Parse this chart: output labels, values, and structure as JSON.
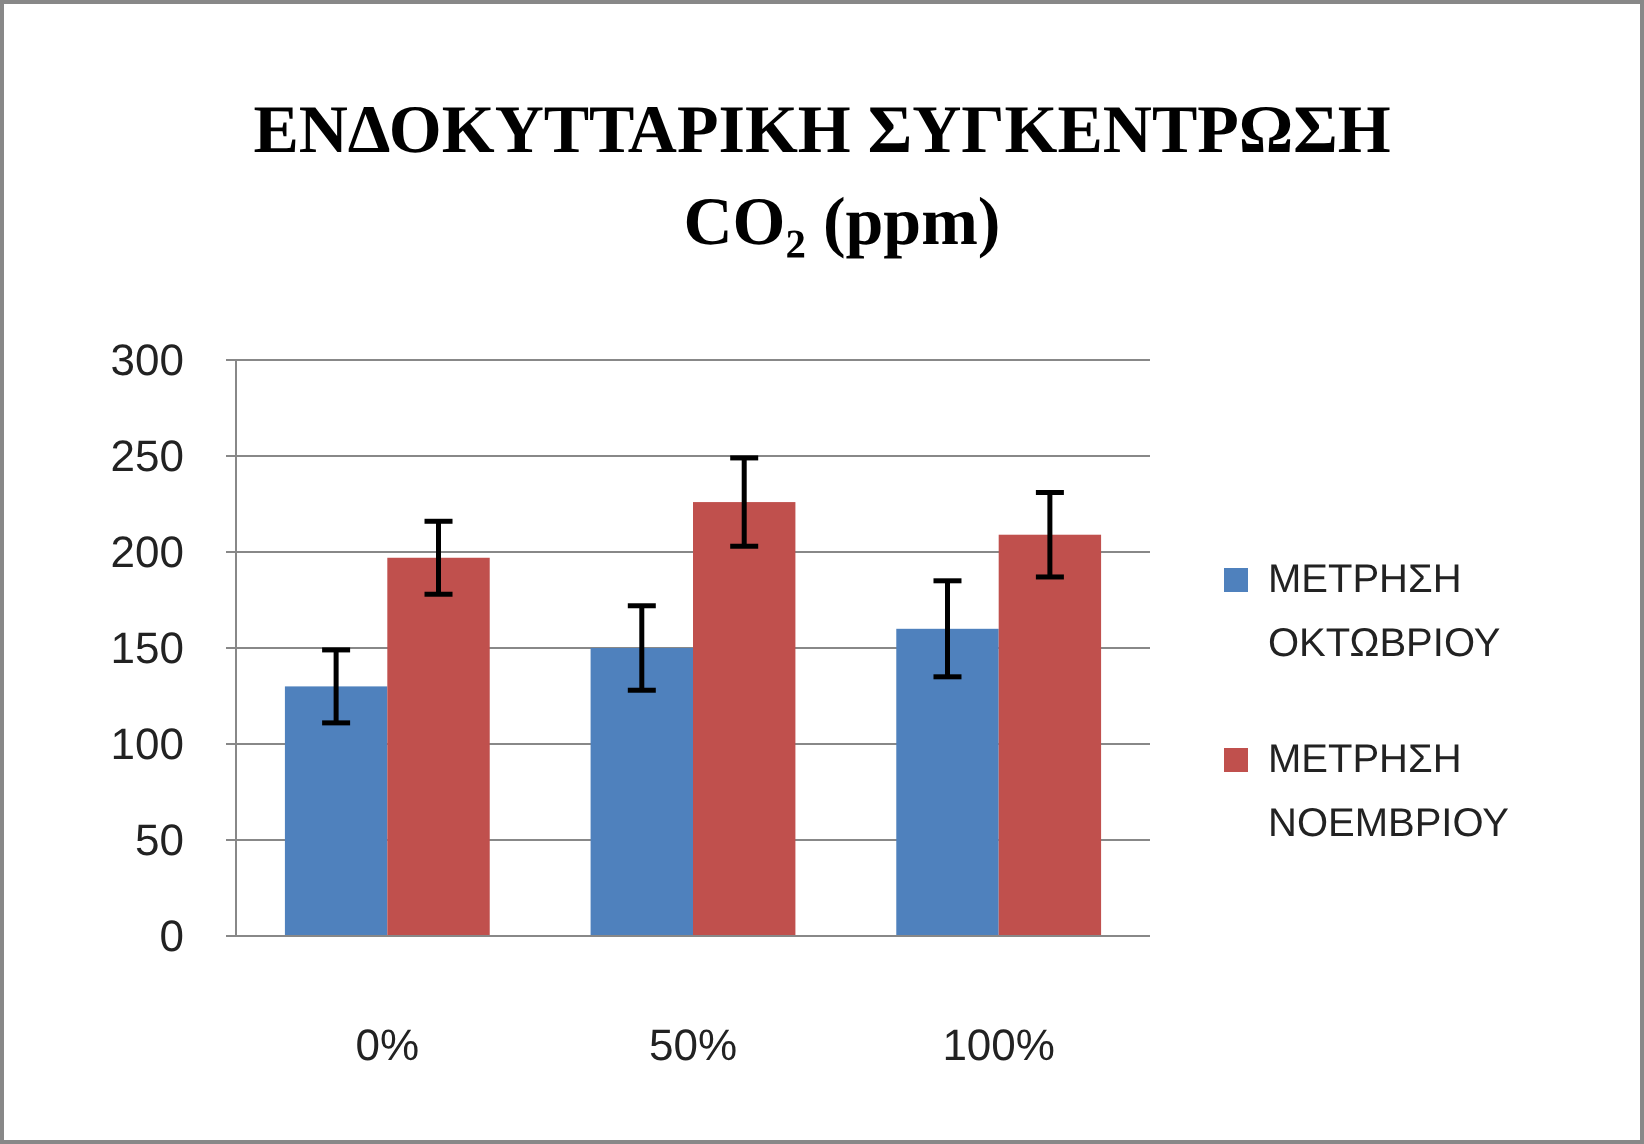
{
  "chart_data": {
    "type": "bar",
    "title": "ΕΝΔΟΚΥΤΤΑΡΙΚΗ ΣΥΓΚΕΝΤΡΩΣΗ CO₂ (ppm)",
    "categories": [
      "0%",
      "50%",
      "100%"
    ],
    "series": [
      {
        "name": "ΜΕΤΡΗΣΗ ΟΚΤΩΒΡΙΟΥ",
        "color": "#4f81bd",
        "values": [
          130,
          150,
          160
        ],
        "errors": [
          19,
          22,
          25
        ]
      },
      {
        "name": "ΜΕΤΡΗΣΗ ΝΟΕΜΒΡΙΟΥ",
        "color": "#c0504d",
        "values": [
          197,
          226,
          209
        ],
        "errors": [
          19,
          23,
          22
        ]
      }
    ],
    "ylim": [
      0,
      300
    ],
    "yticks": [
      0,
      50,
      100,
      150,
      200,
      250,
      300
    ],
    "grid": "y",
    "legend": "right"
  }
}
